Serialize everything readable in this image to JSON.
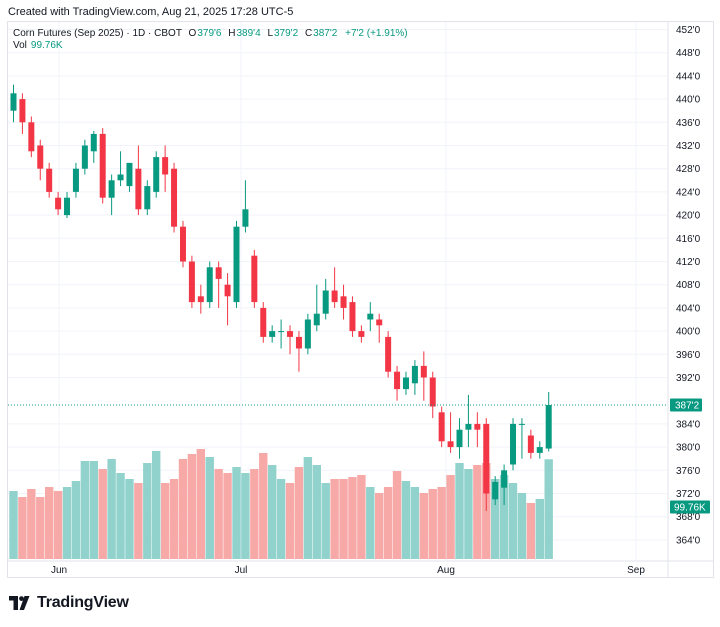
{
  "caption": "Created with TradingView.com, Aug 21, 2025 17:28 UTC-5",
  "legend": {
    "symbol": "Corn Futures (Sep 2025) · 1D · CBOT",
    "open_label": "O",
    "open": "379'6",
    "high_label": "H",
    "high": "389'4",
    "low_label": "L",
    "low": "379'2",
    "close_label": "C",
    "close": "387'2",
    "change": "+7'2 (+1.91%)",
    "vol_label": "Vol",
    "vol_value": "99.76K"
  },
  "footer": {
    "brand": "TradingView"
  },
  "colors": {
    "up": "#089981",
    "down": "#f23645",
    "vol_up": "#92d2cc",
    "vol_down": "#f7a9a7",
    "grid": "#f0f3fa",
    "last_price_line": "#089981"
  },
  "chart_data": {
    "type": "candlestick",
    "title": "Corn Futures (Sep 2025)",
    "interval": "1D",
    "exchange": "CBOT",
    "price_unit": "cents/bushel (eighths notation)",
    "y_ticks": [
      "452'0",
      "448'0",
      "444'0",
      "440'0",
      "436'0",
      "432'0",
      "428'0",
      "424'0",
      "420'0",
      "416'0",
      "412'0",
      "408'0",
      "404'0",
      "400'0",
      "396'0",
      "392'0",
      "384'0",
      "380'0",
      "376'0",
      "372'0",
      "368'0",
      "364'0"
    ],
    "x_ticks": [
      "Jun",
      "Jul",
      "Aug",
      "Sep"
    ],
    "last_price_label": "387'2",
    "volume_label": "99.76K",
    "grid": true,
    "candles": [
      {
        "o": 438.0,
        "h": 442.5,
        "l": 436.0,
        "c": 441.0,
        "v": 68
      },
      {
        "o": 440.0,
        "h": 441.0,
        "l": 434.0,
        "c": 436.0,
        "v": 62
      },
      {
        "o": 436.0,
        "h": 437.0,
        "l": 430.0,
        "c": 431.0,
        "v": 70
      },
      {
        "o": 432.0,
        "h": 433.0,
        "l": 426.0,
        "c": 428.0,
        "v": 62
      },
      {
        "o": 428.0,
        "h": 429.0,
        "l": 423.0,
        "c": 424.0,
        "v": 72
      },
      {
        "o": 423.0,
        "h": 424.0,
        "l": 420.0,
        "c": 421.0,
        "v": 68
      },
      {
        "o": 420.0,
        "h": 424.0,
        "l": 419.5,
        "c": 423.0,
        "v": 72
      },
      {
        "o": 424.0,
        "h": 429.0,
        "l": 423.0,
        "c": 428.0,
        "v": 78
      },
      {
        "o": 428.0,
        "h": 433.0,
        "l": 427.0,
        "c": 432.0,
        "v": 98
      },
      {
        "o": 431.0,
        "h": 434.5,
        "l": 429.0,
        "c": 434.0,
        "v": 98
      },
      {
        "o": 434.0,
        "h": 435.0,
        "l": 422.0,
        "c": 423.0,
        "v": 90
      },
      {
        "o": 423.0,
        "h": 427.0,
        "l": 420.0,
        "c": 426.0,
        "v": 100
      },
      {
        "o": 426.0,
        "h": 431.0,
        "l": 425.0,
        "c": 427.0,
        "v": 86
      },
      {
        "o": 425.0,
        "h": 429.0,
        "l": 424.0,
        "c": 429.0,
        "v": 80
      },
      {
        "o": 428.0,
        "h": 432.0,
        "l": 420.0,
        "c": 421.0,
        "v": 76
      },
      {
        "o": 421.0,
        "h": 426.0,
        "l": 420.0,
        "c": 425.0,
        "v": 96
      },
      {
        "o": 424.0,
        "h": 431.0,
        "l": 423.0,
        "c": 430.0,
        "v": 108
      },
      {
        "o": 430.0,
        "h": 432.0,
        "l": 424.0,
        "c": 427.0,
        "v": 76
      },
      {
        "o": 428.0,
        "h": 429.0,
        "l": 417.0,
        "c": 418.0,
        "v": 80
      },
      {
        "o": 418.0,
        "h": 419.0,
        "l": 411.0,
        "c": 412.0,
        "v": 100
      },
      {
        "o": 412.0,
        "h": 413.0,
        "l": 404.0,
        "c": 405.0,
        "v": 105
      },
      {
        "o": 406.0,
        "h": 408.0,
        "l": 403.0,
        "c": 405.0,
        "v": 110
      },
      {
        "o": 405.0,
        "h": 412.0,
        "l": 404.0,
        "c": 411.0,
        "v": 102
      },
      {
        "o": 411.0,
        "h": 412.0,
        "l": 404.0,
        "c": 409.0,
        "v": 90
      },
      {
        "o": 408.0,
        "h": 410.0,
        "l": 401.0,
        "c": 406.0,
        "v": 86
      },
      {
        "o": 405.0,
        "h": 419.0,
        "l": 404.0,
        "c": 418.0,
        "v": 92
      },
      {
        "o": 418.0,
        "h": 426.0,
        "l": 417.0,
        "c": 421.0,
        "v": 86
      },
      {
        "o": 413.0,
        "h": 414.0,
        "l": 404.0,
        "c": 405.0,
        "v": 90
      },
      {
        "o": 404.0,
        "h": 405.0,
        "l": 398.0,
        "c": 399.0,
        "v": 106
      },
      {
        "o": 399.0,
        "h": 401.0,
        "l": 398.0,
        "c": 400.0,
        "v": 94
      },
      {
        "o": 400.0,
        "h": 402.0,
        "l": 397.0,
        "c": 400.0,
        "v": 80
      },
      {
        "o": 400.0,
        "h": 401.0,
        "l": 396.0,
        "c": 399.0,
        "v": 76
      },
      {
        "o": 399.0,
        "h": 400.0,
        "l": 393.0,
        "c": 397.0,
        "v": 92
      },
      {
        "o": 397.0,
        "h": 403.0,
        "l": 396.0,
        "c": 402.0,
        "v": 102
      },
      {
        "o": 401.0,
        "h": 408.0,
        "l": 400.0,
        "c": 403.0,
        "v": 94
      },
      {
        "o": 403.0,
        "h": 409.0,
        "l": 402.0,
        "c": 407.0,
        "v": 76
      },
      {
        "o": 407.0,
        "h": 411.0,
        "l": 404.0,
        "c": 405.0,
        "v": 80
      },
      {
        "o": 406.0,
        "h": 408.0,
        "l": 402.0,
        "c": 404.0,
        "v": 80
      },
      {
        "o": 405.0,
        "h": 406.0,
        "l": 399.0,
        "c": 400.0,
        "v": 82
      },
      {
        "o": 400.0,
        "h": 401.0,
        "l": 398.0,
        "c": 399.0,
        "v": 84
      },
      {
        "o": 402.0,
        "h": 405.0,
        "l": 400.0,
        "c": 403.0,
        "v": 72
      },
      {
        "o": 402.0,
        "h": 403.0,
        "l": 398.0,
        "c": 401.0,
        "v": 66
      },
      {
        "o": 399.0,
        "h": 400.0,
        "l": 392.0,
        "c": 393.0,
        "v": 72
      },
      {
        "o": 393.0,
        "h": 394.0,
        "l": 388.0,
        "c": 390.0,
        "v": 88
      },
      {
        "o": 390.0,
        "h": 393.0,
        "l": 389.0,
        "c": 392.0,
        "v": 78
      },
      {
        "o": 391.0,
        "h": 395.0,
        "l": 389.0,
        "c": 394.0,
        "v": 72
      },
      {
        "o": 394.0,
        "h": 396.5,
        "l": 388.0,
        "c": 392.0,
        "v": 66
      },
      {
        "o": 392.0,
        "h": 393.0,
        "l": 385.0,
        "c": 387.0,
        "v": 70
      },
      {
        "o": 386.0,
        "h": 387.0,
        "l": 380.0,
        "c": 381.0,
        "v": 72
      },
      {
        "o": 381.0,
        "h": 386.0,
        "l": 379.0,
        "c": 380.0,
        "v": 84
      },
      {
        "o": 380.0,
        "h": 385.0,
        "l": 378.0,
        "c": 383.0,
        "v": 96
      },
      {
        "o": 383.0,
        "h": 389.0,
        "l": 380.0,
        "c": 384.0,
        "v": 90
      },
      {
        "o": 384.0,
        "h": 386.0,
        "l": 380.0,
        "c": 383.0,
        "v": 94
      },
      {
        "o": 384.0,
        "h": 385.0,
        "l": 369.0,
        "c": 372.0,
        "v": 96
      },
      {
        "o": 371.0,
        "h": 375.0,
        "l": 370.0,
        "c": 374.0,
        "v": 80
      },
      {
        "o": 373.0,
        "h": 377.0,
        "l": 370.0,
        "c": 376.0,
        "v": 84
      },
      {
        "o": 377.0,
        "h": 385.0,
        "l": 376.0,
        "c": 384.0,
        "v": 76
      },
      {
        "o": 384.0,
        "h": 385.0,
        "l": 378.0,
        "c": 384.0,
        "v": 66
      },
      {
        "o": 382.0,
        "h": 383.0,
        "l": 378.0,
        "c": 379.0,
        "v": 56
      },
      {
        "o": 379.0,
        "h": 381.0,
        "l": 378.0,
        "c": 380.0,
        "v": 60
      },
      {
        "o": 379.75,
        "h": 389.5,
        "l": 379.25,
        "c": 387.25,
        "v": 99.76
      }
    ]
  }
}
